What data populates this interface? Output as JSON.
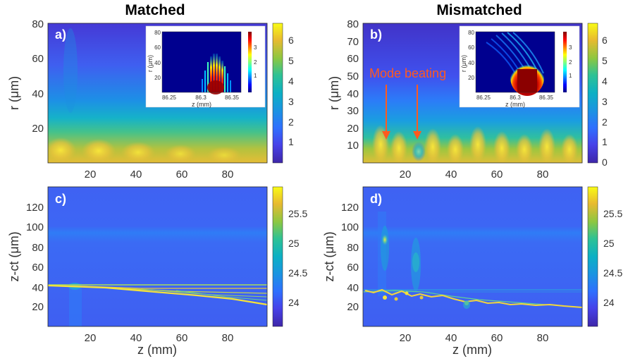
{
  "chart_data": [
    {
      "type": "heatmap",
      "panel_label": "a)",
      "title": "Matched",
      "ylabel": "r (μm)",
      "xlabel": "",
      "xticks": [
        20,
        40,
        60,
        80
      ],
      "yticks": [
        20,
        40,
        60,
        80
      ],
      "xlim": [
        2,
        97
      ],
      "ylim": [
        0,
        80
      ],
      "colorbar": {
        "ticks": [
          1,
          2,
          3,
          4,
          5,
          6
        ],
        "range": [
          0,
          6.8
        ]
      },
      "inset": {
        "xlabel": "z (mm)",
        "ylabel": "r (μm)",
        "xticks": [
          "86.25",
          "86.3",
          "86.35"
        ],
        "yticks": [
          20,
          40,
          60,
          80
        ],
        "colorbar_ticks": [
          1,
          2,
          3
        ]
      }
    },
    {
      "type": "heatmap",
      "panel_label": "b)",
      "title": "Mismatched",
      "ylabel": "r (μm)",
      "xlabel": "",
      "xticks": [
        20,
        40,
        60,
        80
      ],
      "yticks": [
        10,
        20,
        30,
        40,
        50,
        60,
        70,
        80
      ],
      "xlim": [
        2,
        97
      ],
      "ylim": [
        0,
        80
      ],
      "colorbar": {
        "ticks": [
          0,
          1,
          2,
          3,
          4,
          5,
          6
        ],
        "range": [
          0,
          6.8
        ]
      },
      "annotation": "Mode beating",
      "inset": {
        "xlabel": "z (mm)",
        "ylabel": "r (μm)",
        "xticks": [
          "86.25",
          "86.3",
          "86.35"
        ],
        "yticks": [
          20,
          40,
          60,
          80
        ],
        "colorbar_ticks": [
          1,
          2,
          3
        ]
      }
    },
    {
      "type": "heatmap",
      "panel_label": "c)",
      "ylabel": "z-ct (μm)",
      "xlabel": "z (mm)",
      "xticks": [
        20,
        40,
        60,
        80
      ],
      "yticks": [
        20,
        40,
        60,
        80,
        100,
        120
      ],
      "xlim": [
        2,
        97
      ],
      "ylim": [
        0,
        140
      ],
      "colorbar": {
        "ticks": [
          "24",
          "24.5",
          "25",
          "25.5"
        ],
        "range": [
          23.6,
          25.95
        ]
      }
    },
    {
      "type": "heatmap",
      "panel_label": "d)",
      "ylabel": "z-ct (μm)",
      "xlabel": "z (mm)",
      "xticks": [
        20,
        40,
        60,
        80
      ],
      "yticks": [
        20,
        40,
        60,
        80,
        100,
        120
      ],
      "xlim": [
        2,
        97
      ],
      "ylim": [
        0,
        140
      ],
      "colorbar": {
        "ticks": [
          "24",
          "24.5",
          "25",
          "25.5"
        ],
        "range": [
          23.6,
          25.95
        ]
      }
    }
  ]
}
